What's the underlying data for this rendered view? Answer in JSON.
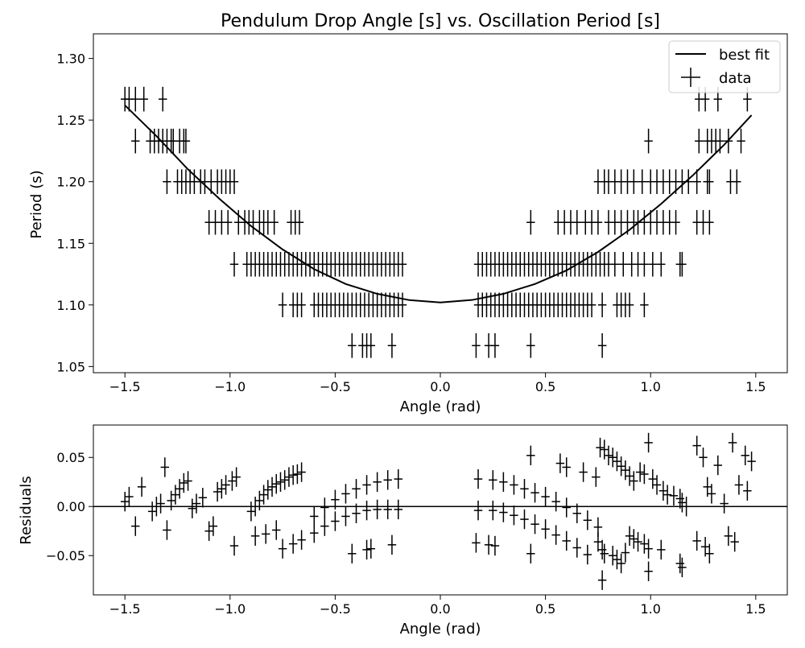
{
  "chart_data": [
    {
      "type": "scatter",
      "title": "Pendulum Drop Angle [s] vs. Oscillation Period [s]",
      "xlabel": "Angle (rad)",
      "ylabel": "Period (s)",
      "xlim": [
        -1.65,
        1.65
      ],
      "ylim": [
        1.045,
        1.32
      ],
      "x_ticks": [
        -1.5,
        -1.0,
        -0.5,
        0.0,
        0.5,
        1.0,
        1.5
      ],
      "x_tick_labels": [
        "−1.5",
        "−1.0",
        "−0.5",
        "0.0",
        "0.5",
        "1.0",
        "1.5"
      ],
      "y_ticks": [
        1.05,
        1.1,
        1.15,
        1.2,
        1.25,
        1.3
      ],
      "y_tick_labels": [
        "1.05",
        "1.10",
        "1.15",
        "1.20",
        "1.25",
        "1.30"
      ],
      "grid": false,
      "legend": {
        "placement": "top-right",
        "entries": [
          "best fit",
          "data"
        ]
      },
      "color": "#000000",
      "x_error": 0.02,
      "y_error": 0.01,
      "fit": {
        "name": "best fit",
        "x": [
          -1.5,
          -1.35,
          -1.2,
          -1.05,
          -0.9,
          -0.75,
          -0.6,
          -0.45,
          -0.3,
          -0.15,
          0.0,
          0.15,
          0.3,
          0.45,
          0.6,
          0.75,
          0.9,
          1.05,
          1.2,
          1.35,
          1.48
        ],
        "y": [
          1.262,
          1.237,
          1.21,
          1.186,
          1.164,
          1.145,
          1.129,
          1.117,
          1.109,
          1.104,
          1.102,
          1.104,
          1.109,
          1.117,
          1.128,
          1.143,
          1.161,
          1.182,
          1.205,
          1.23,
          1.254
        ]
      },
      "series": [
        {
          "name": "data",
          "points": [
            {
              "y": 1.267,
              "x": [
                -1.5,
                -1.48,
                -1.45,
                -1.41,
                -1.32,
                1.23,
                1.26,
                1.32,
                1.46
              ]
            },
            {
              "y": 1.233,
              "x": [
                -1.45,
                -1.38,
                -1.36,
                -1.34,
                -1.32,
                -1.3,
                -1.28,
                -1.27,
                -1.24,
                -1.22,
                -1.21,
                0.99,
                1.23,
                1.27,
                1.29,
                1.31,
                1.33,
                1.37,
                1.43
              ]
            },
            {
              "y": 1.2,
              "x": [
                -1.3,
                -1.25,
                -1.23,
                -1.21,
                -1.19,
                -1.17,
                -1.14,
                -1.12,
                -1.09,
                -1.06,
                -1.04,
                -1.02,
                -1.0,
                -0.98,
                0.75,
                0.78,
                0.8,
                0.83,
                0.86,
                0.89,
                0.92,
                0.96,
                1.0,
                1.03,
                1.06,
                1.09,
                1.12,
                1.15,
                1.18,
                1.22,
                1.27,
                1.28,
                1.38,
                1.41
              ]
            },
            {
              "y": 1.167,
              "x": [
                -1.1,
                -1.07,
                -1.04,
                -1.01,
                -0.96,
                -0.93,
                -0.91,
                -0.89,
                -0.86,
                -0.84,
                -0.82,
                -0.79,
                -0.71,
                -0.69,
                -0.67,
                0.43,
                0.56,
                0.59,
                0.62,
                0.65,
                0.69,
                0.72,
                0.75,
                0.8,
                0.83,
                0.86,
                0.89,
                0.92,
                0.94,
                0.97,
                1.0,
                1.03,
                1.06,
                1.09,
                1.12,
                1.22,
                1.25,
                1.28
              ]
            },
            {
              "y": 1.133,
              "x": [
                -0.98,
                -0.92,
                -0.9,
                -0.88,
                -0.86,
                -0.84,
                -0.82,
                -0.8,
                -0.78,
                -0.76,
                -0.74,
                -0.72,
                -0.7,
                -0.68,
                -0.66,
                -0.64,
                -0.62,
                -0.6,
                -0.58,
                -0.56,
                -0.54,
                -0.52,
                -0.5,
                -0.48,
                -0.46,
                -0.44,
                -0.42,
                -0.4,
                -0.38,
                -0.36,
                -0.34,
                -0.32,
                -0.3,
                -0.28,
                -0.26,
                -0.24,
                -0.22,
                -0.2,
                -0.18,
                0.18,
                0.2,
                0.22,
                0.24,
                0.26,
                0.28,
                0.3,
                0.32,
                0.34,
                0.36,
                0.38,
                0.4,
                0.42,
                0.44,
                0.46,
                0.48,
                0.5,
                0.52,
                0.54,
                0.56,
                0.58,
                0.6,
                0.62,
                0.64,
                0.66,
                0.68,
                0.7,
                0.72,
                0.74,
                0.76,
                0.78,
                0.8,
                0.83,
                0.87,
                0.91,
                0.94,
                0.97,
                1.01,
                1.05,
                1.14,
                1.15
              ]
            },
            {
              "y": 1.1,
              "x": [
                -0.75,
                -0.7,
                -0.68,
                -0.66,
                -0.6,
                -0.58,
                -0.56,
                -0.54,
                -0.52,
                -0.5,
                -0.48,
                -0.46,
                -0.44,
                -0.42,
                -0.4,
                -0.38,
                -0.36,
                -0.34,
                -0.32,
                -0.3,
                -0.28,
                -0.26,
                -0.24,
                -0.22,
                -0.2,
                -0.18,
                0.18,
                0.2,
                0.22,
                0.24,
                0.26,
                0.28,
                0.3,
                0.32,
                0.34,
                0.36,
                0.38,
                0.4,
                0.42,
                0.44,
                0.46,
                0.48,
                0.5,
                0.52,
                0.54,
                0.56,
                0.58,
                0.6,
                0.62,
                0.64,
                0.66,
                0.68,
                0.7,
                0.72,
                0.77,
                0.84,
                0.86,
                0.88,
                0.9,
                0.97
              ]
            },
            {
              "y": 1.067,
              "x": [
                -0.42,
                -0.37,
                -0.35,
                -0.33,
                -0.23,
                0.17,
                0.23,
                0.26,
                0.43,
                0.77
              ]
            }
          ]
        }
      ]
    },
    {
      "type": "scatter",
      "title": "",
      "xlabel": "Angle (rad)",
      "ylabel": "Residuals",
      "xlim": [
        -1.65,
        1.65
      ],
      "ylim": [
        -0.09,
        0.083
      ],
      "x_ticks": [
        -1.5,
        -1.0,
        -0.5,
        0.0,
        0.5,
        1.0,
        1.5
      ],
      "x_tick_labels": [
        "−1.5",
        "−1.0",
        "−0.5",
        "0.0",
        "0.5",
        "1.0",
        "1.5"
      ],
      "y_ticks": [
        -0.05,
        0.0,
        0.05
      ],
      "y_tick_labels": [
        "−0.05",
        "0.00",
        "0.05"
      ],
      "grid": false,
      "reference_line_y": 0.0,
      "color": "#000000",
      "x_error": 0.02,
      "y_error": 0.01,
      "series": [
        {
          "name": "residuals",
          "x": [
            -1.5,
            -1.48,
            -1.45,
            -1.42,
            -1.37,
            -1.35,
            -1.33,
            -1.31,
            -1.3,
            -1.28,
            -1.26,
            -1.24,
            -1.22,
            -1.2,
            -1.18,
            -1.16,
            -1.13,
            -1.1,
            -1.08,
            -1.06,
            -1.04,
            -1.02,
            -0.99,
            -0.97,
            -0.98,
            -0.9,
            -0.88,
            -0.86,
            -0.84,
            -0.82,
            -0.8,
            -0.78,
            -0.76,
            -0.74,
            -0.72,
            -0.7,
            -0.68,
            -0.66,
            -0.6,
            -0.55,
            -0.5,
            -0.45,
            -0.4,
            -0.35,
            -0.3,
            -0.25,
            -0.2,
            -0.88,
            -0.83,
            -0.78,
            -0.75,
            -0.7,
            -0.66,
            -0.6,
            -0.55,
            -0.5,
            -0.45,
            -0.4,
            -0.35,
            -0.3,
            -0.25,
            -0.2,
            -0.42,
            -0.35,
            -0.33,
            -0.23,
            0.18,
            0.25,
            0.3,
            0.35,
            0.4,
            0.45,
            0.5,
            0.55,
            0.6,
            0.65,
            0.7,
            0.75,
            0.18,
            0.25,
            0.3,
            0.35,
            0.4,
            0.45,
            0.5,
            0.55,
            0.6,
            0.65,
            0.7,
            0.75,
            0.17,
            0.23,
            0.26,
            0.43,
            0.43,
            0.57,
            0.6,
            0.68,
            0.74,
            0.76,
            0.78,
            0.8,
            0.82,
            0.84,
            0.86,
            0.88,
            0.9,
            0.92,
            0.95,
            0.97,
            0.99,
            1.01,
            1.03,
            1.06,
            1.08,
            1.11,
            1.14,
            1.15,
            1.17,
            1.22,
            1.25,
            1.27,
            1.29,
            1.32,
            1.35,
            1.39,
            1.42,
            1.45,
            1.48,
            0.77,
            0.78,
            0.82,
            0.84,
            0.86,
            0.88,
            0.9,
            0.92,
            0.94,
            0.97,
            0.99,
            1.05,
            1.14,
            1.15,
            1.22,
            1.26,
            1.28,
            1.37,
            1.4,
            1.46,
            0.77,
            0.99
          ],
          "y": [
            0.005,
            0.01,
            -0.02,
            0.02,
            -0.005,
            0.0,
            0.003,
            0.04,
            -0.024,
            0.006,
            0.012,
            0.018,
            0.024,
            0.026,
            -0.002,
            0.003,
            0.009,
            -0.025,
            -0.02,
            0.015,
            0.018,
            0.022,
            0.026,
            0.03,
            -0.04,
            -0.005,
            0.0,
            0.006,
            0.012,
            0.017,
            0.02,
            0.023,
            0.025,
            0.027,
            0.03,
            0.032,
            0.033,
            0.035,
            -0.01,
            -0.001,
            0.007,
            0.013,
            0.018,
            0.022,
            0.025,
            0.027,
            0.028,
            -0.03,
            -0.028,
            -0.024,
            -0.043,
            -0.038,
            -0.034,
            -0.027,
            -0.02,
            -0.015,
            -0.01,
            -0.007,
            -0.004,
            -0.003,
            -0.003,
            -0.003,
            -0.048,
            -0.044,
            -0.043,
            -0.039,
            0.028,
            0.027,
            0.025,
            0.022,
            0.018,
            0.014,
            0.01,
            0.005,
            -0.001,
            -0.007,
            -0.014,
            -0.021,
            -0.004,
            -0.004,
            -0.006,
            -0.009,
            -0.013,
            -0.018,
            -0.023,
            -0.029,
            -0.035,
            -0.042,
            -0.049,
            -0.036,
            -0.037,
            -0.039,
            -0.04,
            -0.048,
            0.052,
            0.044,
            0.04,
            0.035,
            0.03,
            0.06,
            0.058,
            0.052,
            0.05,
            0.046,
            0.041,
            0.037,
            0.031,
            0.026,
            0.035,
            0.033,
            0.065,
            0.028,
            0.022,
            0.016,
            0.012,
            0.011,
            0.008,
            0.004,
            0.0,
            0.062,
            0.05,
            0.02,
            0.013,
            0.042,
            0.003,
            0.065,
            0.022,
            0.052,
            0.046,
            -0.044,
            -0.048,
            -0.05,
            -0.054,
            -0.058,
            -0.047,
            -0.03,
            -0.033,
            -0.036,
            -0.038,
            -0.043,
            -0.044,
            -0.058,
            -0.062,
            -0.035,
            -0.041,
            -0.048,
            -0.03,
            -0.036,
            0.016,
            -0.075,
            -0.066
          ]
        }
      ]
    }
  ]
}
